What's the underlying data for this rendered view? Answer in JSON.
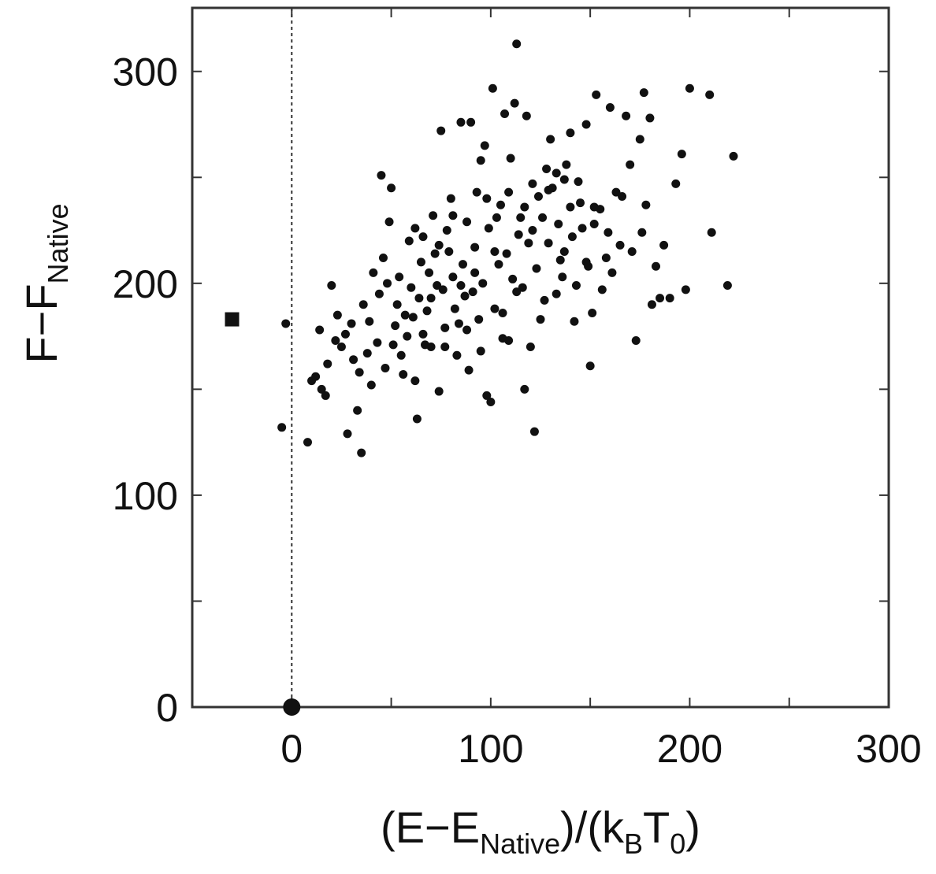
{
  "chart_data": {
    "type": "scatter",
    "title": "",
    "xlabel": {
      "main_before": "(E−E",
      "sub": "Native",
      "main_mid": ")/(k",
      "sub2": "B",
      "main_mid2": "T",
      "sub3": "0",
      "main_after": ")"
    },
    "ylabel": {
      "main": "F−F",
      "sub": "Native"
    },
    "xlim": [
      -50,
      300
    ],
    "ylim": [
      0,
      330
    ],
    "x_ticks": [
      "0",
      "100",
      "200",
      "300"
    ],
    "y_ticks": [
      "0",
      "100",
      "200",
      "300"
    ],
    "x_tick_values": [
      0,
      100,
      200,
      300
    ],
    "y_tick_values": [
      0,
      100,
      200,
      300
    ],
    "grid": false,
    "reference_line": {
      "x": 0,
      "style": "dotted"
    },
    "special_points": [
      {
        "marker": "circle-large",
        "x": 0,
        "y": 0
      },
      {
        "marker": "square",
        "x": -30,
        "y": 183
      }
    ],
    "series": [
      {
        "marker": "dot",
        "points": [
          [
            -5,
            132
          ],
          [
            -3,
            181
          ],
          [
            8,
            125
          ],
          [
            10,
            154
          ],
          [
            12,
            156
          ],
          [
            15,
            150
          ],
          [
            17,
            147
          ],
          [
            20,
            199
          ],
          [
            22,
            173
          ],
          [
            25,
            170
          ],
          [
            28,
            129
          ],
          [
            30,
            181
          ],
          [
            31,
            164
          ],
          [
            33,
            140
          ],
          [
            35,
            120
          ],
          [
            36,
            190
          ],
          [
            38,
            167
          ],
          [
            40,
            152
          ],
          [
            41,
            205
          ],
          [
            44,
            195
          ],
          [
            45,
            251
          ],
          [
            48,
            200
          ],
          [
            50,
            245
          ],
          [
            52,
            180
          ],
          [
            55,
            166
          ],
          [
            58,
            175
          ],
          [
            60,
            198
          ],
          [
            62,
            154
          ],
          [
            63,
            136
          ],
          [
            65,
            210
          ],
          [
            66,
            222
          ],
          [
            68,
            187
          ],
          [
            70,
            170
          ],
          [
            71,
            232
          ],
          [
            73,
            199
          ],
          [
            74,
            149
          ],
          [
            75,
            272
          ],
          [
            77,
            179
          ],
          [
            79,
            215
          ],
          [
            80,
            240
          ],
          [
            82,
            188
          ],
          [
            83,
            166
          ],
          [
            85,
            276
          ],
          [
            86,
            209
          ],
          [
            88,
            229
          ],
          [
            89,
            159
          ],
          [
            90,
            276
          ],
          [
            91,
            196
          ],
          [
            93,
            243
          ],
          [
            94,
            183
          ],
          [
            95,
            258
          ],
          [
            97,
            265
          ],
          [
            98,
            147
          ],
          [
            100,
            144
          ],
          [
            101,
            292
          ],
          [
            103,
            231
          ],
          [
            104,
            209
          ],
          [
            106,
            186
          ],
          [
            107,
            280
          ],
          [
            109,
            173
          ],
          [
            110,
            259
          ],
          [
            112,
            285
          ],
          [
            113,
            313
          ],
          [
            114,
            223
          ],
          [
            116,
            198
          ],
          [
            117,
            150
          ],
          [
            118,
            279
          ],
          [
            120,
            170
          ],
          [
            122,
            130
          ],
          [
            124,
            241
          ],
          [
            126,
            231
          ],
          [
            128,
            254
          ],
          [
            130,
            268
          ],
          [
            133,
            195
          ],
          [
            135,
            211
          ],
          [
            137,
            249
          ],
          [
            140,
            271
          ],
          [
            142,
            182
          ],
          [
            145,
            238
          ],
          [
            148,
            275
          ],
          [
            150,
            161
          ],
          [
            151,
            186
          ],
          [
            153,
            289
          ],
          [
            155,
            235
          ],
          [
            158,
            212
          ],
          [
            160,
            283
          ],
          [
            163,
            243
          ],
          [
            165,
            218
          ],
          [
            168,
            279
          ],
          [
            170,
            256
          ],
          [
            173,
            173
          ],
          [
            175,
            268
          ],
          [
            177,
            290
          ],
          [
            178,
            237
          ],
          [
            180,
            278
          ],
          [
            183,
            208
          ],
          [
            185,
            193
          ],
          [
            187,
            218
          ],
          [
            190,
            193
          ],
          [
            193,
            247
          ],
          [
            196,
            261
          ],
          [
            198,
            197
          ],
          [
            200,
            292
          ],
          [
            210,
            289
          ],
          [
            211,
            224
          ],
          [
            219,
            199
          ],
          [
            222,
            260
          ],
          [
            14,
            178
          ],
          [
            18,
            162
          ],
          [
            23,
            185
          ],
          [
            27,
            176
          ],
          [
            34,
            158
          ],
          [
            39,
            182
          ],
          [
            43,
            172
          ],
          [
            47,
            160
          ],
          [
            53,
            190
          ],
          [
            56,
            157
          ],
          [
            59,
            220
          ],
          [
            61,
            184
          ],
          [
            64,
            193
          ],
          [
            67,
            171
          ],
          [
            69,
            205
          ],
          [
            72,
            214
          ],
          [
            76,
            197
          ],
          [
            78,
            225
          ],
          [
            81,
            203
          ],
          [
            84,
            181
          ],
          [
            87,
            194
          ],
          [
            92,
            217
          ],
          [
            96,
            200
          ],
          [
            99,
            226
          ],
          [
            102,
            188
          ],
          [
            105,
            237
          ],
          [
            108,
            214
          ],
          [
            111,
            202
          ],
          [
            115,
            231
          ],
          [
            119,
            219
          ],
          [
            121,
            247
          ],
          [
            123,
            207
          ],
          [
            127,
            192
          ],
          [
            129,
            219
          ],
          [
            131,
            245
          ],
          [
            134,
            228
          ],
          [
            136,
            203
          ],
          [
            138,
            256
          ],
          [
            141,
            222
          ],
          [
            143,
            199
          ],
          [
            146,
            226
          ],
          [
            149,
            208
          ],
          [
            152,
            236
          ],
          [
            156,
            197
          ],
          [
            159,
            224
          ],
          [
            161,
            205
          ],
          [
            166,
            241
          ],
          [
            171,
            215
          ],
          [
            176,
            224
          ],
          [
            181,
            190
          ],
          [
            46,
            212
          ],
          [
            49,
            229
          ],
          [
            51,
            171
          ],
          [
            54,
            203
          ],
          [
            57,
            185
          ],
          [
            62,
            226
          ],
          [
            66,
            176
          ],
          [
            70,
            193
          ],
          [
            74,
            218
          ],
          [
            77,
            170
          ],
          [
            81,
            232
          ],
          [
            85,
            199
          ],
          [
            88,
            178
          ],
          [
            92,
            205
          ],
          [
            95,
            168
          ],
          [
            98,
            240
          ],
          [
            102,
            215
          ],
          [
            106,
            174
          ],
          [
            109,
            243
          ],
          [
            113,
            196
          ],
          [
            117,
            236
          ],
          [
            121,
            225
          ],
          [
            125,
            183
          ],
          [
            129,
            244
          ],
          [
            133,
            252
          ],
          [
            137,
            215
          ],
          [
            140,
            236
          ],
          [
            144,
            248
          ],
          [
            148,
            210
          ],
          [
            152,
            228
          ]
        ]
      }
    ]
  }
}
